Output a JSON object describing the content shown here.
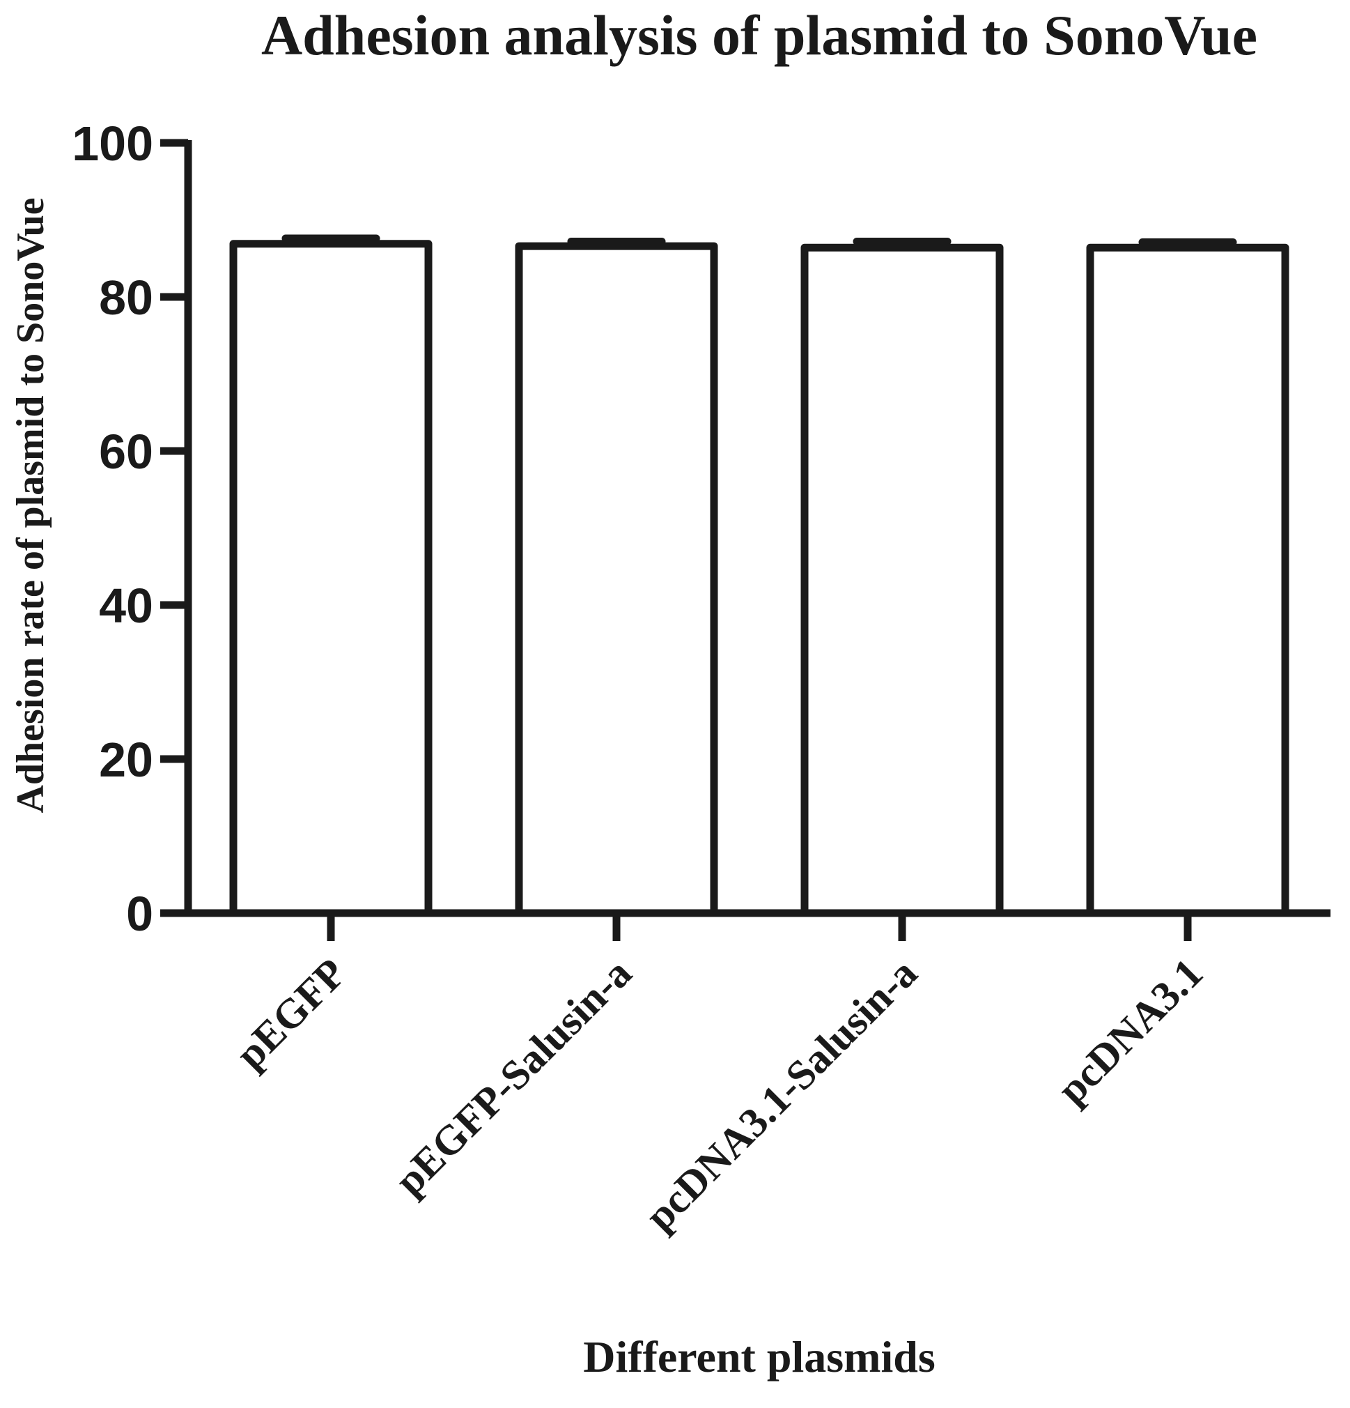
{
  "chart_data": {
    "type": "bar",
    "title": "Adhesion analysis of plasmid to SonoVue",
    "xlabel": "Different plasmids",
    "ylabel": "Adhesion rate of plasmid to SonoVue",
    "categories": [
      "pEGFP",
      "pEGFP-Salusin-a",
      "pcDNA3.1-Salusin-a",
      "pcDNA3.1"
    ],
    "values": [
      86.9,
      86.6,
      86.4,
      86.4
    ],
    "errors": [
      0.7,
      0.6,
      0.8,
      0.7
    ],
    "ylim": [
      0,
      100
    ],
    "yticks": [
      0,
      20,
      40,
      60,
      80,
      100
    ],
    "grid": false,
    "legend": "none",
    "bar_fill": "#ffffff",
    "bar_stroke": "#1a1a1a"
  }
}
